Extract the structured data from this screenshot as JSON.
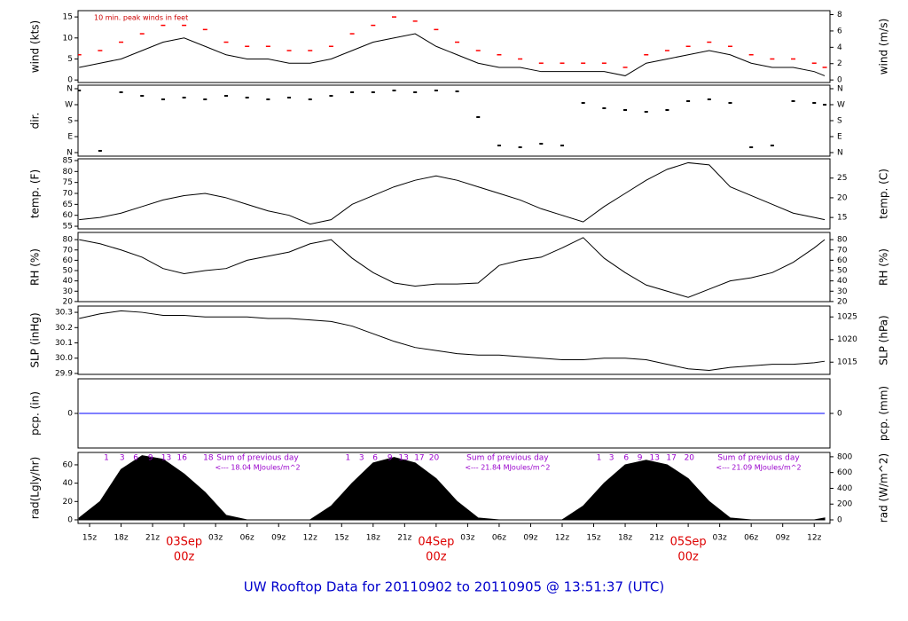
{
  "title": "UW Rooftop Data for 20110902  to  20110905 @ 13:51:37  (UTC)",
  "chart_data": [
    {
      "type": "line",
      "ylabel": "wind (kts)",
      "y2label": "wind (m/s)",
      "annotation": "10 min. peak winds in feet",
      "x": [
        14,
        16,
        18,
        20,
        22,
        24,
        26,
        28,
        30,
        32,
        34,
        36,
        38,
        40,
        42,
        44,
        46,
        48,
        50,
        52,
        54,
        56,
        58,
        60,
        62,
        64,
        66,
        68,
        70,
        72,
        74,
        76,
        78,
        80,
        82,
        84,
        85
      ],
      "xlim": [
        13.9,
        85.5
      ],
      "ylim": [
        -0.6,
        16.5
      ],
      "yticks": [
        0,
        5,
        10,
        15
      ],
      "y2lim": [
        -0.31,
        8.49
      ],
      "y2ticks": [
        0,
        2,
        4,
        6,
        8
      ],
      "series": [
        {
          "color": "#000000",
          "style": "line",
          "values": [
            3,
            4,
            5,
            7,
            9,
            10,
            8,
            6,
            5,
            5,
            4,
            4,
            5,
            7,
            9,
            10,
            11,
            8,
            6,
            4,
            3,
            3,
            2,
            2,
            2,
            2,
            1,
            4,
            5,
            6,
            7,
            6,
            4,
            3,
            3,
            2,
            1
          ]
        },
        {
          "color": "#ff0000",
          "style": "points",
          "values": [
            6,
            7,
            9,
            11,
            13,
            13,
            12,
            9,
            8,
            8,
            7,
            7,
            8,
            11,
            13,
            15,
            14,
            12,
            9,
            7,
            6,
            5,
            4,
            4,
            4,
            4,
            3,
            6,
            7,
            8,
            9,
            8,
            6,
            5,
            5,
            4,
            3
          ]
        }
      ]
    },
    {
      "type": "scatter",
      "ylabel": "dir.",
      "x": [
        14,
        16,
        18,
        20,
        22,
        24,
        26,
        28,
        30,
        32,
        34,
        36,
        38,
        40,
        42,
        44,
        46,
        48,
        50,
        52,
        54,
        56,
        58,
        60,
        62,
        64,
        66,
        68,
        70,
        72,
        74,
        76,
        78,
        80,
        82,
        84,
        85
      ],
      "xlim": [
        13.9,
        85.5
      ],
      "ylim": [
        -20,
        380
      ],
      "yticks": [
        {
          "value": 0,
          "label": "N"
        },
        {
          "value": 90,
          "label": "E"
        },
        {
          "value": 180,
          "label": "S"
        },
        {
          "value": 270,
          "label": "W"
        },
        {
          "value": 360,
          "label": "N"
        }
      ],
      "y2lim": [
        -20,
        380
      ],
      "y2ticks": [
        {
          "value": 0,
          "label": "N"
        },
        {
          "value": 90,
          "label": "E"
        },
        {
          "value": 180,
          "label": "S"
        },
        {
          "value": 270,
          "label": "W"
        },
        {
          "value": 360,
          "label": "N"
        }
      ],
      "color": "#000000",
      "values": [
        350,
        10,
        340,
        320,
        300,
        310,
        300,
        320,
        310,
        300,
        310,
        300,
        320,
        340,
        340,
        350,
        340,
        350,
        345,
        200,
        40,
        30,
        50,
        40,
        280,
        250,
        240,
        230,
        240,
        290,
        300,
        280,
        30,
        40,
        290,
        280,
        270
      ]
    },
    {
      "type": "line",
      "ylabel": "temp. (F)",
      "y2label": "temp. (C)",
      "x": [
        14,
        16,
        18,
        20,
        22,
        24,
        26,
        28,
        30,
        32,
        34,
        36,
        38,
        40,
        42,
        44,
        46,
        48,
        50,
        52,
        54,
        56,
        58,
        60,
        62,
        64,
        66,
        68,
        70,
        72,
        74,
        76,
        78,
        80,
        82,
        84,
        85
      ],
      "xlim": [
        13.9,
        85.5
      ],
      "ylim": [
        53.8,
        85.8
      ],
      "yticks": [
        55,
        60,
        65,
        70,
        75,
        80,
        85
      ],
      "y2lim": [
        12.1,
        29.9
      ],
      "y2ticks": [
        15,
        20,
        25
      ],
      "series": [
        {
          "color": "#000000",
          "style": "line",
          "values": [
            58,
            59,
            61,
            64,
            67,
            69,
            70,
            68,
            65,
            62,
            60,
            56,
            58,
            65,
            69,
            73,
            76,
            78,
            76,
            73,
            70,
            67,
            63,
            60,
            57,
            64,
            70,
            76,
            81,
            84,
            83,
            73,
            69,
            65,
            61,
            59,
            58
          ]
        }
      ]
    },
    {
      "type": "line",
      "ylabel": "RH (%)",
      "y2label": "RH (%)",
      "x": [
        14,
        16,
        18,
        20,
        22,
        24,
        26,
        28,
        30,
        32,
        34,
        36,
        38,
        40,
        42,
        44,
        46,
        48,
        50,
        52,
        54,
        56,
        58,
        60,
        62,
        64,
        66,
        68,
        70,
        72,
        74,
        76,
        78,
        80,
        82,
        84,
        85
      ],
      "xlim": [
        13.9,
        85.5
      ],
      "ylim": [
        19.9,
        87
      ],
      "yticks": [
        20,
        30,
        40,
        50,
        60,
        70,
        80
      ],
      "y2lim": [
        19.9,
        87
      ],
      "y2ticks": [
        20,
        30,
        40,
        50,
        60,
        70,
        80
      ],
      "series": [
        {
          "color": "#000000",
          "style": "line",
          "values": [
            80,
            76,
            70,
            63,
            52,
            47,
            50,
            52,
            60,
            64,
            68,
            76,
            80,
            62,
            48,
            38,
            35,
            37,
            37,
            38,
            55,
            60,
            63,
            72,
            82,
            62,
            48,
            36,
            30,
            24,
            32,
            40,
            43,
            48,
            58,
            72,
            80
          ]
        }
      ]
    },
    {
      "type": "line",
      "ylabel": "SLP (inHg)",
      "y2label": "SLP (hPa)",
      "x": [
        14,
        16,
        18,
        20,
        22,
        24,
        26,
        28,
        30,
        32,
        34,
        36,
        38,
        40,
        42,
        44,
        46,
        48,
        50,
        52,
        54,
        56,
        58,
        60,
        62,
        64,
        66,
        68,
        70,
        72,
        74,
        76,
        78,
        80,
        82,
        84,
        85
      ],
      "xlim": [
        13.9,
        85.5
      ],
      "ylim": [
        29.894,
        30.341
      ],
      "yticks": [
        29.9,
        {
          "value": 30,
          "label": "30.0"
        },
        30.1,
        30.2,
        30.3
      ],
      "y2lim": [
        1012.3,
        1027.4
      ],
      "y2ticks": [
        1015,
        1020,
        1025
      ],
      "series": [
        {
          "color": "#000000",
          "style": "line",
          "values": [
            30.26,
            30.29,
            30.31,
            30.3,
            30.28,
            30.28,
            30.27,
            30.27,
            30.27,
            30.26,
            30.26,
            30.25,
            30.24,
            30.21,
            30.16,
            30.11,
            30.07,
            30.05,
            30.03,
            30.02,
            30.02,
            30.01,
            30.0,
            29.99,
            29.99,
            30.0,
            30.0,
            29.99,
            29.96,
            29.93,
            29.92,
            29.94,
            29.95,
            29.96,
            29.96,
            29.97,
            29.98
          ]
        }
      ]
    },
    {
      "type": "line",
      "ylabel": "pcp. (in)",
      "y2label": "pcp. (mm)",
      "x": [
        14,
        85
      ],
      "xlim": [
        13.9,
        85.5
      ],
      "ylim": [
        -1,
        1
      ],
      "yticks": [
        0
      ],
      "y2lim": [
        -1,
        1
      ],
      "y2ticks": [
        0
      ],
      "series": [
        {
          "color": "#0000ff",
          "style": "line",
          "values": [
            0,
            0
          ]
        }
      ]
    },
    {
      "type": "area",
      "ylabel": "rad(Lgly/hr)",
      "y2label": "rad (W/m^2)",
      "x": [
        14,
        16,
        18,
        20,
        22,
        24,
        26,
        28,
        30,
        32,
        34,
        36,
        38,
        40,
        42,
        44,
        46,
        48,
        50,
        52,
        54,
        56,
        58,
        60,
        62,
        64,
        66,
        68,
        70,
        72,
        74,
        76,
        78,
        80,
        82,
        84,
        85
      ],
      "xlim": [
        13.9,
        85.5
      ],
      "ylim": [
        -3.9,
        73.5
      ],
      "yticks": [
        0,
        20,
        40,
        60
      ],
      "y2lim": [
        -45,
        855
      ],
      "y2ticks": [
        0,
        200,
        400,
        600,
        800
      ],
      "color": "#000000",
      "values": [
        2,
        20,
        55,
        70,
        66,
        50,
        30,
        5,
        0,
        0,
        0,
        0,
        15,
        40,
        62,
        68,
        62,
        45,
        20,
        2,
        0,
        0,
        0,
        0,
        15,
        40,
        60,
        65,
        60,
        45,
        20,
        2,
        0,
        0,
        0,
        0,
        2
      ],
      "xticks": [
        {
          "value": 15,
          "label": "15z"
        },
        {
          "value": 18,
          "label": "18z"
        },
        {
          "value": 21,
          "label": "21z"
        },
        {
          "value": 24,
          "label": "00z"
        },
        {
          "value": 27,
          "label": "03z"
        },
        {
          "value": 30,
          "label": "06z"
        },
        {
          "value": 33,
          "label": "09z"
        },
        {
          "value": 36,
          "label": "12z"
        },
        {
          "value": 39,
          "label": "15z"
        },
        {
          "value": 42,
          "label": "18z"
        },
        {
          "value": 45,
          "label": "21z"
        },
        {
          "value": 48,
          "label": "00z"
        },
        {
          "value": 51,
          "label": "03z"
        },
        {
          "value": 54,
          "label": "06z"
        },
        {
          "value": 57,
          "label": "09z"
        },
        {
          "value": 60,
          "label": "12z"
        },
        {
          "value": 63,
          "label": "15z"
        },
        {
          "value": 66,
          "label": "18z"
        },
        {
          "value": 69,
          "label": "21z"
        },
        {
          "value": 72,
          "label": "00z"
        },
        {
          "value": 75,
          "label": "03z"
        },
        {
          "value": 78,
          "label": "06z"
        },
        {
          "value": 81,
          "label": "09z"
        },
        {
          "value": 84,
          "label": "12z"
        }
      ],
      "day_labels": [
        {
          "value": 24,
          "label": "03Sep"
        },
        {
          "value": 48,
          "label": "04Sep"
        },
        {
          "value": 72,
          "label": "05Sep"
        }
      ],
      "hour_labels": [
        {
          "text": "1",
          "x": 16.6
        },
        {
          "text": "3",
          "x": 18.1
        },
        {
          "text": "6",
          "x": 19.4
        },
        {
          "text": "9",
          "x": 20.8
        },
        {
          "text": "13",
          "x": 22.3
        },
        {
          "text": "16",
          "x": 23.8
        },
        {
          "text": "18",
          "x": 26.3
        },
        {
          "text": "1",
          "x": 39.6
        },
        {
          "text": "3",
          "x": 40.9
        },
        {
          "text": "6",
          "x": 42.2
        },
        {
          "text": "9",
          "x": 43.6
        },
        {
          "text": "13",
          "x": 44.9
        },
        {
          "text": "17",
          "x": 46.4
        },
        {
          "text": "20",
          "x": 47.8
        },
        {
          "text": "1",
          "x": 63.5
        },
        {
          "text": "3",
          "x": 64.7
        },
        {
          "text": "6",
          "x": 66.1
        },
        {
          "text": "9",
          "x": 67.4
        },
        {
          "text": "13",
          "x": 68.8
        },
        {
          "text": "17",
          "x": 70.4
        },
        {
          "text": "20",
          "x": 72.1
        }
      ],
      "sums": [
        {
          "title": "Sum of previous day",
          "text": "<--- 18.04 MJoules/m^2",
          "x": 31
        },
        {
          "title": "Sum of previous day",
          "text": "<--- 21.84 MJoules/m^2",
          "x": 54.8
        },
        {
          "title": "Sum of previous day",
          "text": "<--- 21.09 MJoules/m^2",
          "x": 78.7
        }
      ]
    }
  ]
}
